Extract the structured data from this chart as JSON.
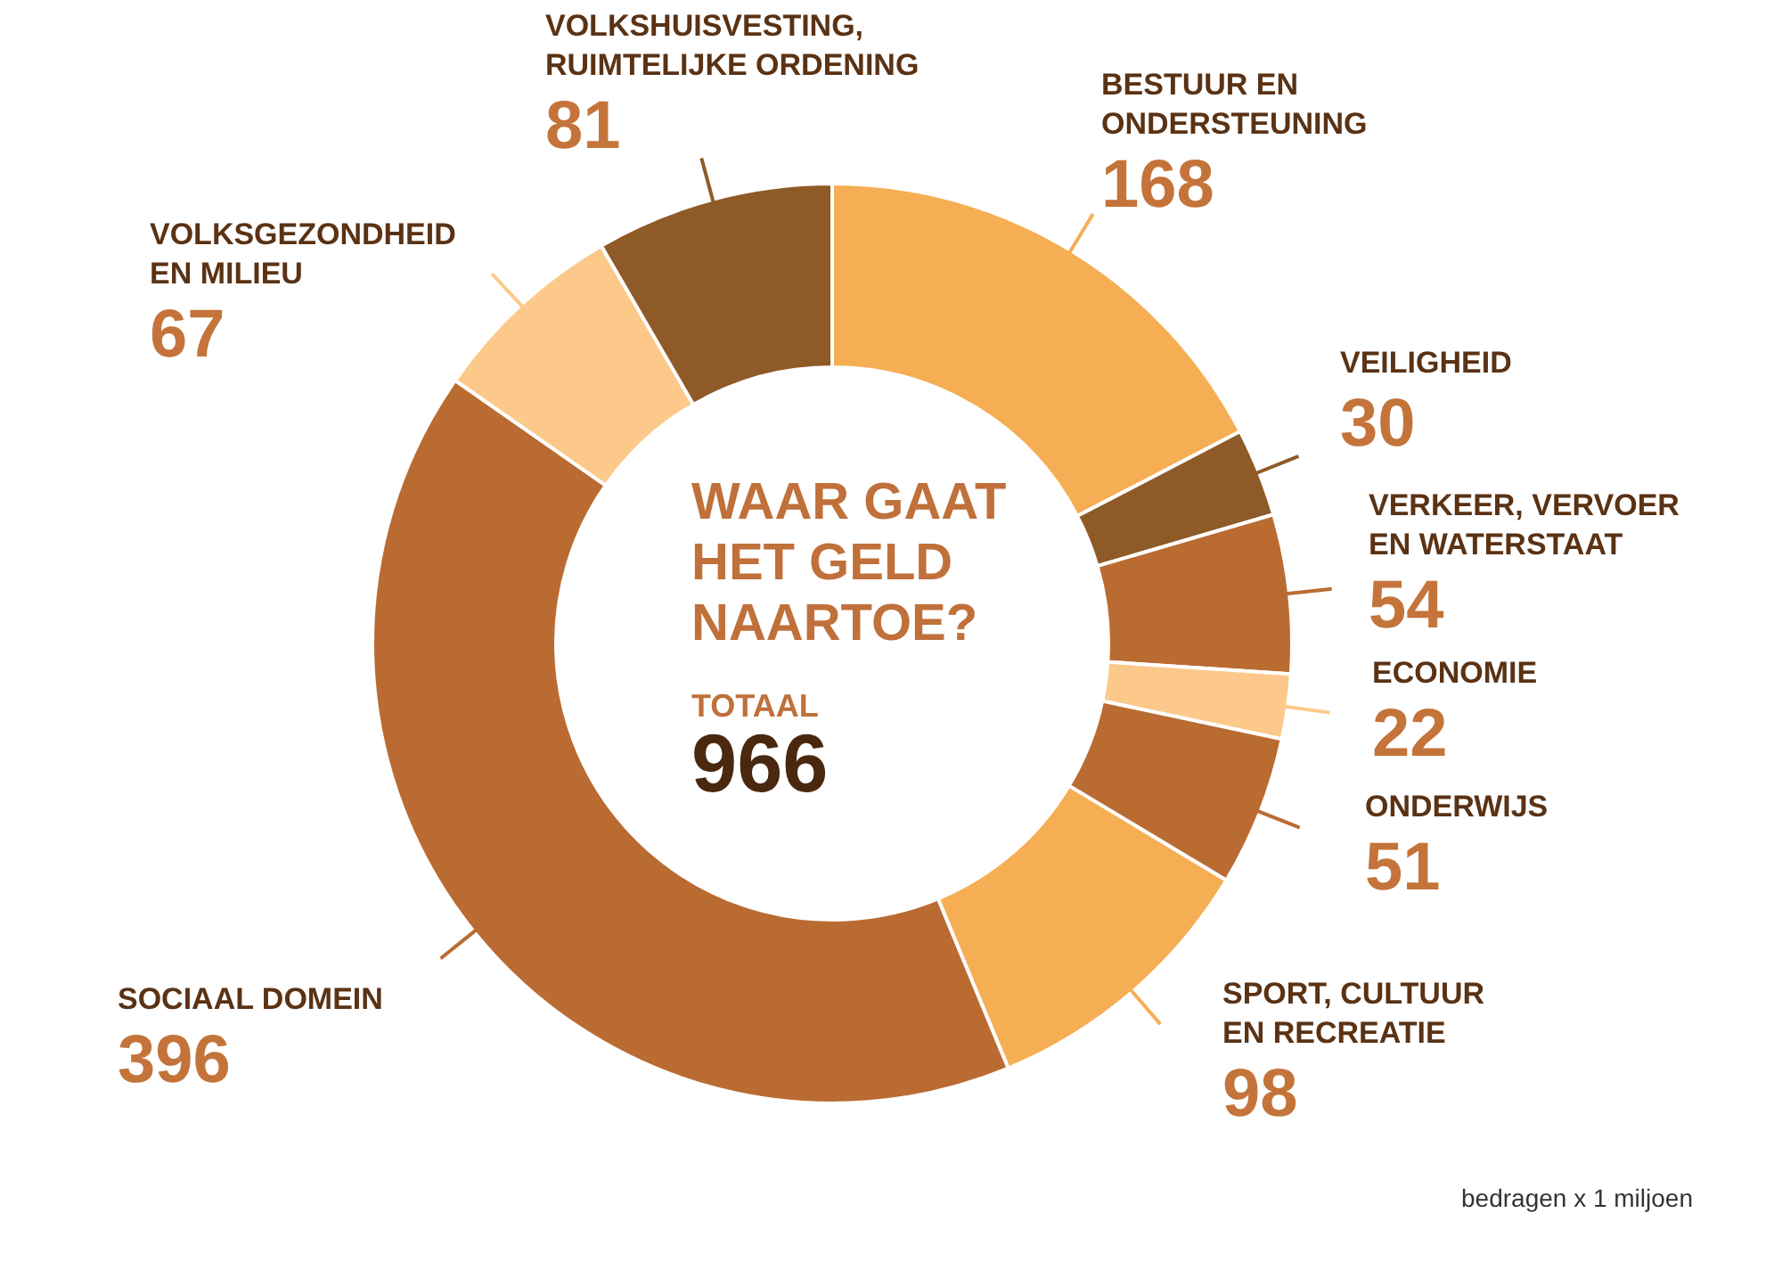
{
  "chart_data": {
    "type": "donut",
    "title": "WAAR GAAT HET GELD NAARTOE?",
    "categories": [
      "BESTUUR EN ONDERSTEUNING",
      "VEILIGHEID",
      "VERKEER, VERVOER EN WATERSTAAT",
      "ECONOMIE",
      "ONDERWIJS",
      "SPORT, CULTUUR EN RECREATIE",
      "SOCIAAL DOMEIN",
      "VOLKSGEZONDHEID EN MILIEU",
      "VOLKSHUISVESTING, RUIMTELIJKE ORDENING"
    ],
    "values": [
      168,
      30,
      54,
      22,
      51,
      98,
      396,
      67,
      81
    ],
    "colors": [
      "#f6ae54",
      "#8e5a28",
      "#ba6b32",
      "#fcc98b",
      "#ba6b32",
      "#f6ae54",
      "#ba6b32",
      "#fcc98b",
      "#8e5a28"
    ],
    "data_labels": true,
    "annotations": [
      "TOTAAL",
      "966",
      "bedragen x 1 miljoen"
    ]
  }
}
